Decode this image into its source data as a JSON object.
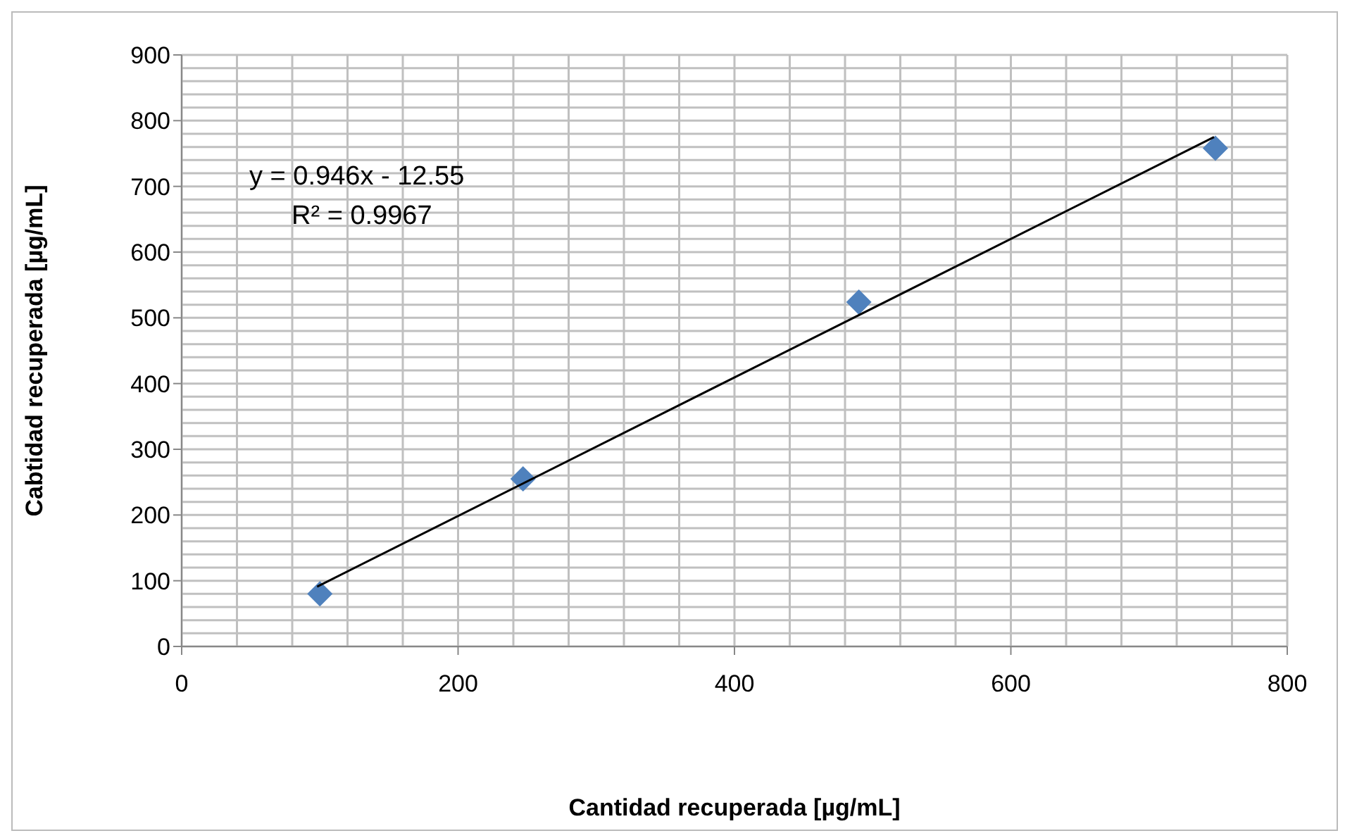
{
  "chart_data": {
    "type": "scatter",
    "xlabel": "Cantidad recuperada [µg/mL]",
    "ylabel": "Cabtidad recuperada [µg/mL]",
    "xlim": [
      0,
      800
    ],
    "xticks": [
      0,
      200,
      400,
      600,
      800
    ],
    "ylim": [
      0,
      900
    ],
    "yticks": [
      0,
      100,
      200,
      300,
      400,
      500,
      600,
      700,
      800,
      900
    ],
    "grid": true,
    "marker": "diamond",
    "series": [
      {
        "color": "#4f81bd",
        "x": [
          100,
          247,
          490,
          748
        ],
        "values": [
          80,
          255,
          524,
          758
        ]
      },
      {
        "type": "line",
        "color": "#000000",
        "marker": "none",
        "x": [
          98,
          747
        ],
        "values": [
          91,
          775
        ]
      }
    ],
    "annotations": [
      "y = 0.946x - 12.55",
      "R² = 0.9967"
    ]
  }
}
